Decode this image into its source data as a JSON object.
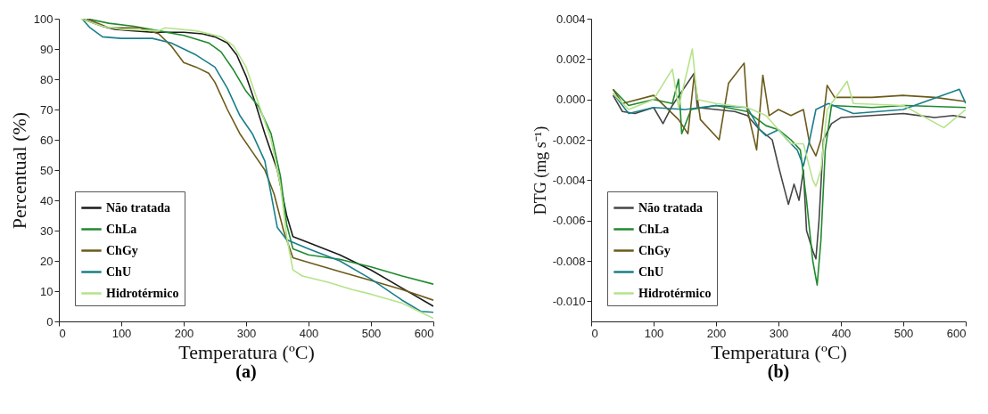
{
  "chart_data": [
    {
      "type": "line",
      "title": "(a)",
      "xlabel": "Temperatura (ºC)",
      "ylabel": "Percentual (%)",
      "xlim": [
        0,
        600
      ],
      "xticks": [
        0,
        100,
        200,
        300,
        400,
        500,
        600
      ],
      "ylim": [
        0,
        100
      ],
      "yticks": [
        0,
        10,
        20,
        30,
        40,
        50,
        60,
        70,
        80,
        90,
        100
      ],
      "grid": false,
      "legend": "bottom left",
      "series": [
        {
          "name": "Não tratada",
          "color": "#1a1a1a",
          "x": [
            37,
            50,
            70,
            90,
            120,
            150,
            200,
            230,
            250,
            270,
            285,
            300,
            315,
            330,
            350,
            365,
            375,
            400,
            450,
            500,
            550,
            600
          ],
          "values": [
            100,
            99,
            97.5,
            96.5,
            96,
            95.5,
            95.5,
            95,
            94,
            92,
            88,
            81,
            72,
            62,
            50,
            35,
            28,
            26,
            22,
            17,
            11,
            5
          ]
        },
        {
          "name": "ChLa",
          "color": "#1f8a2e",
          "x": [
            45,
            80,
            120,
            160,
            200,
            240,
            260,
            280,
            300,
            320,
            340,
            355,
            365,
            375,
            400,
            450,
            500,
            550,
            600
          ],
          "values": [
            100,
            98.5,
            97.5,
            96,
            94.5,
            92,
            89,
            83,
            76,
            71,
            62,
            48,
            32,
            24,
            22,
            20.5,
            18,
            15,
            12.3
          ]
        },
        {
          "name": "ChGy",
          "color": "#6b5a1a",
          "x": [
            45,
            80,
            130,
            160,
            180,
            200,
            220,
            240,
            250,
            270,
            290,
            310,
            330,
            345,
            360,
            375,
            400,
            450,
            500,
            550,
            600
          ],
          "values": [
            100,
            97,
            97,
            95,
            91,
            85.5,
            84,
            82,
            79,
            70,
            62,
            56,
            50,
            42,
            30,
            21,
            19.5,
            16.5,
            13.5,
            10.5,
            7
          ]
        },
        {
          "name": "ChU",
          "color": "#1a7f8a",
          "x": [
            37,
            50,
            70,
            100,
            150,
            180,
            220,
            250,
            270,
            290,
            310,
            330,
            340,
            350,
            365,
            400,
            450,
            500,
            550,
            580,
            600
          ],
          "values": [
            100,
            97,
            94,
            93.5,
            93.5,
            92,
            88,
            84,
            77,
            68,
            62,
            53,
            42,
            31,
            27,
            24,
            20,
            14,
            7,
            3.3,
            3
          ]
        },
        {
          "name": "Hidrotérmico",
          "color": "#b5e38a",
          "x": [
            35,
            70,
            100,
            160,
            170,
            220,
            260,
            280,
            300,
            320,
            340,
            355,
            365,
            375,
            390,
            430,
            470,
            500,
            550,
            580,
            600
          ],
          "values": [
            100,
            97.5,
            96.5,
            96,
            97,
            96,
            94,
            91,
            84,
            72,
            60,
            45,
            28,
            17,
            15,
            13,
            10.5,
            9,
            6,
            3,
            1
          ]
        }
      ]
    },
    {
      "type": "line",
      "title": "(b)",
      "xlabel": "Temperatura (ºC)",
      "ylabel": "DTG (mg s⁻¹)",
      "xlim": [
        0,
        600
      ],
      "xticks": [
        0,
        100,
        200,
        300,
        400,
        500,
        600
      ],
      "ylim": [
        -0.011,
        0.004
      ],
      "yticks": [
        {
          "value": -0.01,
          "label": "-0.010"
        },
        {
          "value": -0.008,
          "label": "-0.008"
        },
        {
          "value": -0.006,
          "label": "-0.006"
        },
        {
          "value": -0.004,
          "label": "-0.004"
        },
        {
          "value": -0.002,
          "label": "-0.002"
        },
        {
          "value": 0,
          "label": "0.000"
        },
        {
          "value": 0.002,
          "label": "0.002"
        },
        {
          "value": 0.004,
          "label": "0.004"
        }
      ],
      "grid": false,
      "legend": "bottom left",
      "series": [
        {
          "name": "Não tratada",
          "color": "#454545",
          "x": [
            35,
            50,
            70,
            100,
            115,
            130,
            165,
            170,
            200,
            230,
            250,
            270,
            290,
            300,
            310,
            316,
            325,
            333,
            340,
            345,
            355,
            360,
            365,
            372,
            385,
            400,
            450,
            500,
            550,
            580,
            600
          ],
          "values": [
            0.0002,
            -0.0006,
            -0.0007,
            -0.0004,
            -0.0012,
            -0.0003,
            0.0013,
            -0.0004,
            -0.0005,
            -0.0006,
            -0.0008,
            -0.0015,
            -0.002,
            -0.0033,
            -0.0045,
            -0.0052,
            -0.0042,
            -0.005,
            -0.0035,
            -0.0065,
            -0.0075,
            -0.0079,
            -0.006,
            -0.002,
            -0.0012,
            -0.0009,
            -0.0008,
            -0.0007,
            -0.0009,
            -0.0008,
            -0.0009
          ]
        },
        {
          "name": "ChLa",
          "color": "#1f8a2e",
          "x": [
            35,
            60,
            100,
            130,
            140,
            145,
            160,
            200,
            250,
            280,
            300,
            320,
            335,
            345,
            355,
            362,
            368,
            375,
            385,
            450,
            500,
            600
          ],
          "values": [
            0.0005,
            -0.0003,
            0,
            -0.0002,
            0.001,
            -0.0017,
            -0.0005,
            -0.0003,
            -0.0006,
            -0.0013,
            -0.0015,
            -0.002,
            -0.0025,
            -0.005,
            -0.008,
            -0.0092,
            -0.007,
            -0.0025,
            -0.0003,
            -0.0004,
            -0.0003,
            -0.0004
          ]
        },
        {
          "name": "ChGy",
          "color": "#6b5a1a",
          "x": [
            35,
            50,
            100,
            140,
            155,
            165,
            175,
            205,
            220,
            245,
            250,
            265,
            275,
            285,
            300,
            320,
            340,
            350,
            360,
            368,
            378,
            390,
            450,
            500,
            550,
            600
          ],
          "values": [
            0.0005,
            -0.0002,
            0.0002,
            -0.001,
            -0.0017,
            0.0012,
            -0.001,
            -0.002,
            0.0008,
            0.0018,
            -0.0005,
            -0.0025,
            0.0012,
            -0.0008,
            -0.0005,
            -0.0008,
            -0.0005,
            -0.0022,
            -0.0028,
            -0.002,
            0.0007,
            0.0001,
            0.0001,
            0.0002,
            0.0001,
            -0.0001
          ]
        },
        {
          "name": "ChU",
          "color": "#1a7f8a",
          "x": [
            35,
            60,
            100,
            150,
            200,
            250,
            270,
            280,
            300,
            320,
            330,
            340,
            350,
            360,
            380,
            420,
            500,
            590,
            600
          ],
          "values": [
            0.0003,
            -0.0007,
            -0.0004,
            -0.0005,
            -0.0003,
            -0.0004,
            -0.0015,
            -0.0018,
            -0.0015,
            -0.0022,
            -0.0025,
            -0.0033,
            -0.002,
            -0.0005,
            -0.0002,
            -0.0007,
            -0.0005,
            0.0005,
            -0.0002
          ]
        },
        {
          "name": "Hidrotérmico",
          "color": "#b5e38a",
          "x": [
            35,
            60,
            100,
            130,
            140,
            162,
            170,
            200,
            250,
            280,
            300,
            320,
            340,
            355,
            360,
            368,
            378,
            410,
            420,
            500,
            565,
            600
          ],
          "values": [
            0.0003,
            -0.0005,
            0,
            0.0015,
            -0.0004,
            0.0025,
            0,
            -0.0002,
            -0.0004,
            -0.0008,
            -0.0015,
            -0.0022,
            -0.0022,
            -0.004,
            -0.0043,
            -0.0035,
            -0.0005,
            0.0009,
            -0.0002,
            -0.0003,
            -0.0014,
            -0.0005
          ]
        }
      ]
    }
  ]
}
